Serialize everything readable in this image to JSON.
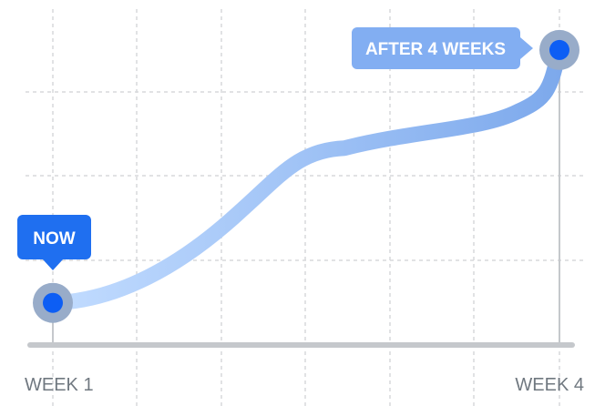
{
  "chart_data": {
    "type": "line",
    "categories": [
      "WEEK 1",
      "WEEK 4"
    ],
    "tick_labels": [
      "WEEK 1",
      "WEEK 4"
    ],
    "series": [
      {
        "points": [
          {
            "x": 1,
            "y": 0.5
          },
          {
            "x": 4,
            "y": 3.5
          }
        ]
      }
    ],
    "callouts": [
      {
        "text": "NOW",
        "at": "start"
      },
      {
        "text": "AFTER 4 WEEKS",
        "at": "end"
      }
    ],
    "grid": true,
    "line_gradient": [
      "#c2dcff",
      "#7da9ec"
    ],
    "marker_color": "#0d5ef4",
    "marker_ring_color": "#98acc9",
    "callout_colors": {
      "now": "#1f6ff0",
      "after": "#82aef2"
    },
    "axis_color": "#c5c8cc",
    "grid_color": "#d7d9dc"
  }
}
